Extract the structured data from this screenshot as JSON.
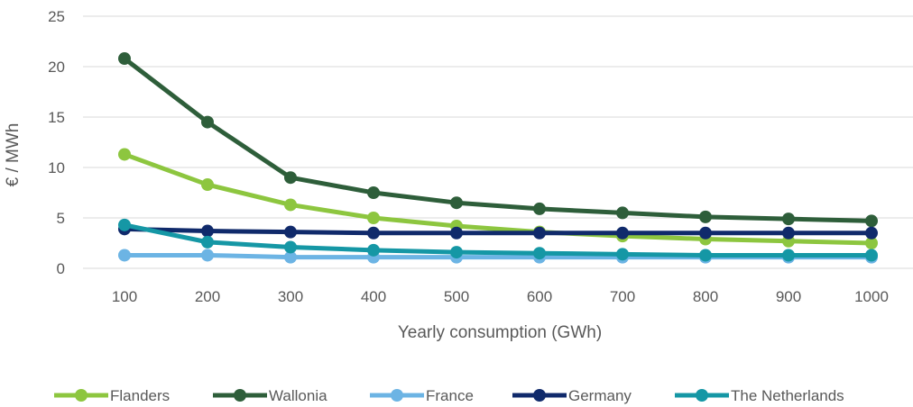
{
  "chart_data": {
    "type": "line",
    "title": "",
    "xlabel": "Yearly consumption (GWh)",
    "ylabel": "€ / MWh",
    "x": [
      100,
      200,
      300,
      400,
      500,
      600,
      700,
      800,
      900,
      1000
    ],
    "ylim": [
      0,
      25
    ],
    "yticks": [
      0,
      5,
      10,
      15,
      20,
      25
    ],
    "grid": true,
    "legend_position": "bottom",
    "series": [
      {
        "name": "Flanders",
        "color": "#8DC63F",
        "values": [
          11.3,
          8.3,
          6.3,
          5.0,
          4.2,
          3.6,
          3.2,
          2.9,
          2.7,
          2.5
        ]
      },
      {
        "name": "Wallonia",
        "color": "#2E5E3A",
        "values": [
          20.8,
          14.5,
          9.0,
          7.5,
          6.5,
          5.9,
          5.5,
          5.1,
          4.9,
          4.7
        ]
      },
      {
        "name": "France",
        "color": "#6CB4E4",
        "values": [
          1.3,
          1.3,
          1.1,
          1.1,
          1.1,
          1.1,
          1.1,
          1.1,
          1.1,
          1.1
        ]
      },
      {
        "name": "Germany",
        "color": "#102A6B",
        "values": [
          3.9,
          3.7,
          3.6,
          3.5,
          3.5,
          3.5,
          3.5,
          3.5,
          3.5,
          3.5
        ]
      },
      {
        "name": "The Netherlands",
        "color": "#1597A5",
        "values": [
          4.3,
          2.6,
          2.1,
          1.8,
          1.6,
          1.5,
          1.4,
          1.3,
          1.3,
          1.3
        ]
      }
    ]
  }
}
